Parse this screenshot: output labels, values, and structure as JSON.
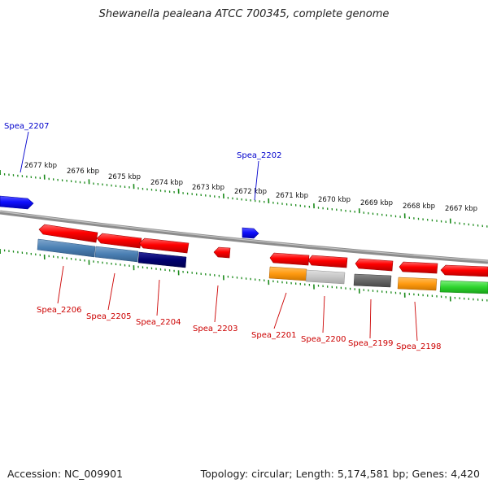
{
  "title": "Shewanella pealeana ATCC 700345, complete genome",
  "footer": {
    "accession": "Accession: NC_009901",
    "summary": "Topology: circular; Length: 5,174,581 bp; Genes: 4,420"
  },
  "scale_labels": [
    "2677 kbp",
    "2676 kbp",
    "2675 kbp",
    "2674 kbp",
    "2673 kbp",
    "2672 kbp",
    "2671 kbp",
    "2670 kbp",
    "2669 kbp",
    "2668 kbp",
    "2667 kbp"
  ],
  "gene_labels": {
    "forward": [
      "Spea_2207",
      "Spea_2202"
    ],
    "reverse": [
      "Spea_2206",
      "Spea_2205",
      "Spea_2204",
      "Spea_2203",
      "Spea_2201",
      "Spea_2200",
      "Spea_2199",
      "Spea_2198"
    ]
  },
  "colors": {
    "forward_gene": "#1a1aff",
    "reverse_gene": "#ff0000",
    "backbone": "#888888",
    "ticks": "#1a8a1a",
    "forward_label": "#0000cc",
    "reverse_label": "#cc0000"
  }
}
